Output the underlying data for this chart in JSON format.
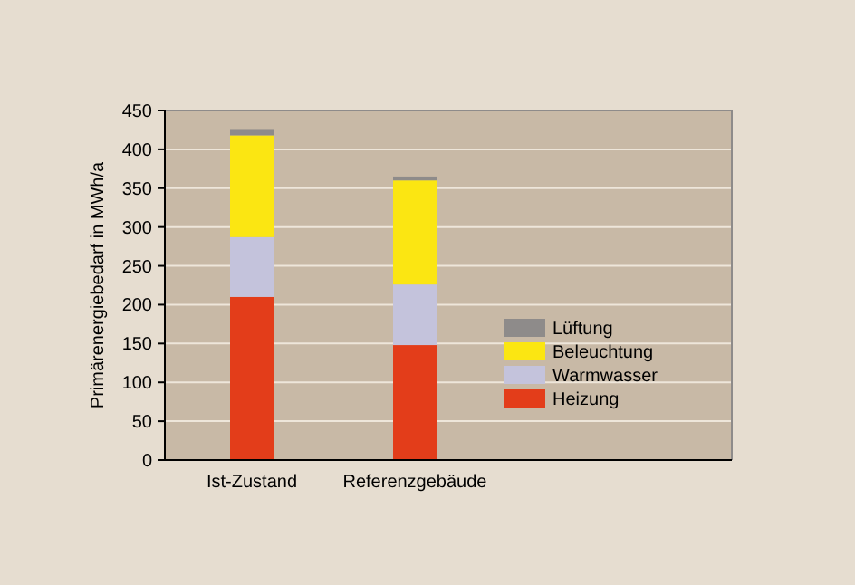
{
  "chart_data": {
    "type": "bar",
    "stacked": true,
    "ylabel": "Primärenergiebedarf in MWh/a",
    "categories": [
      "Ist-Zustand",
      "Referenzgebäude"
    ],
    "series": [
      {
        "name": "Heizung",
        "color": "#e33d1a",
        "values": [
          210,
          148
        ]
      },
      {
        "name": "Warmwasser",
        "color": "#c4c3dc",
        "values": [
          77,
          78
        ]
      },
      {
        "name": "Beleuchtung",
        "color": "#fbe612",
        "values": [
          131,
          134
        ]
      },
      {
        "name": "Lüftung",
        "color": "#8e8b8a",
        "values": [
          7,
          5
        ]
      }
    ],
    "ylim": [
      0,
      450
    ],
    "yticks": [
      0,
      50,
      100,
      150,
      200,
      250,
      300,
      350,
      400,
      450
    ],
    "grid": "y",
    "legend": "right"
  }
}
